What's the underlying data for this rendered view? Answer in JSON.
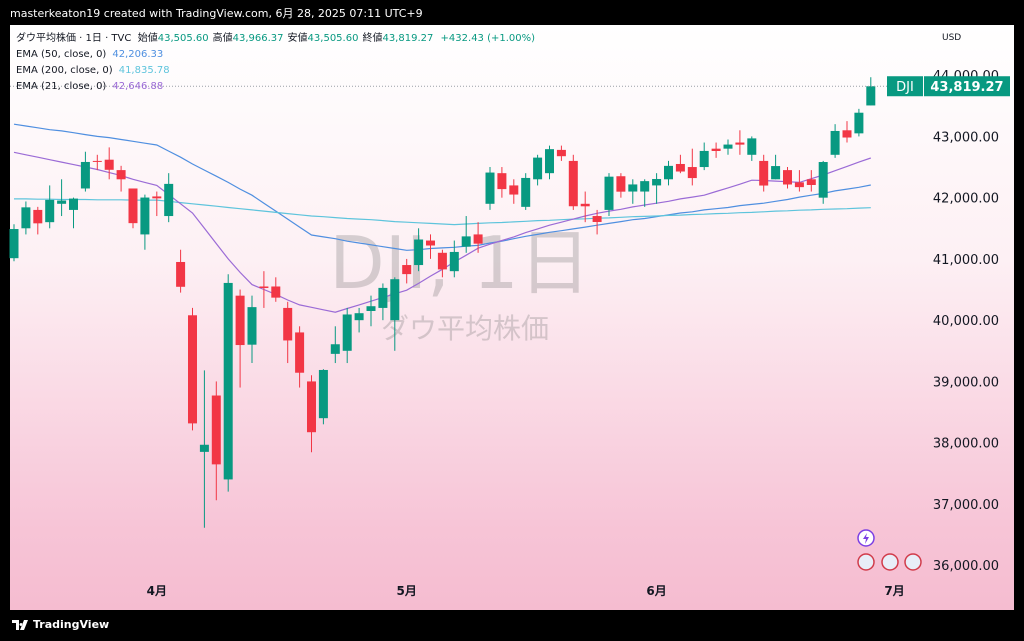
{
  "header": {
    "text": "masterkeaton19 created with TradingView.com, 6月 28, 2025 07:11 UTC+9"
  },
  "footer": {
    "brand": "TradingView"
  },
  "chart_data": {
    "type": "candlestick",
    "symbol_title": "ダウ平均株価 · 1日 · TVC",
    "ohlc_legend": [
      {
        "label": "始値",
        "value": "43,505.60"
      },
      {
        "label": "高値",
        "value": "43,966.37"
      },
      {
        "label": "安値",
        "value": "43,505.60"
      },
      {
        "label": "終値",
        "value": "43,819.27"
      }
    ],
    "change": "+432.43 (+1.00%)",
    "currency": "USD",
    "watermark": "DJI, 1日",
    "watermark_subtitle": "ダウ平均株価",
    "price_tag": {
      "symbol": "DJI",
      "label": "43,819.27"
    },
    "categories": [
      null,
      null,
      null,
      null,
      null,
      null,
      null,
      null,
      null,
      null,
      null,
      null,
      "4月",
      null,
      null,
      null,
      null,
      null,
      null,
      null,
      null,
      null,
      null,
      null,
      null,
      null,
      null,
      null,
      null,
      null,
      null,
      null,
      null,
      "5月",
      null,
      null,
      null,
      null,
      null,
      null,
      null,
      null,
      null,
      null,
      null,
      null,
      null,
      null,
      null,
      null,
      null,
      null,
      null,
      null,
      "6月",
      null,
      null,
      null,
      null,
      null,
      null,
      null,
      null,
      null,
      null,
      null,
      null,
      null,
      null,
      null,
      null,
      null,
      null,
      null,
      "7月"
    ],
    "open": [
      41012,
      41500,
      41800,
      41600,
      41900,
      41800,
      42150,
      42600,
      42620,
      42450,
      42150,
      41400,
      42020,
      41700,
      40950,
      40080,
      37850,
      38770,
      37400,
      40400,
      39600,
      40550,
      40550,
      40200,
      39800,
      39000,
      38400,
      39450,
      39500,
      40000,
      40150,
      40200,
      40000,
      40900,
      40900,
      41300,
      41100,
      40800,
      41200,
      41400,
      41900,
      42400,
      42200,
      41850,
      42300,
      42400,
      42780,
      42600,
      41900,
      41700,
      41800,
      42350,
      42100,
      42100,
      42200,
      42300,
      42550,
      42500,
      42500,
      42800,
      42800,
      42900,
      42700,
      42600,
      42300,
      42450,
      42250,
      42300,
      42000,
      42700,
      43100,
      43050,
      43505.6,
      null,
      null
    ],
    "high": [
      41566,
      41938,
      41850,
      42200,
      42300,
      42000,
      42750,
      42700,
      42821,
      42520,
      42150,
      42050,
      42100,
      42400,
      41150,
      40200,
      39180,
      39000,
      40750,
      40500,
      40400,
      40800,
      40700,
      40300,
      39900,
      39100,
      39200,
      39900,
      40200,
      40200,
      40400,
      40600,
      40700,
      41000,
      41500,
      41400,
      41150,
      41300,
      41700,
      41600,
      42500,
      42500,
      42300,
      42400,
      42700,
      42850,
      42850,
      42700,
      42100,
      41800,
      42400,
      42400,
      42300,
      42300,
      42400,
      42600,
      42700,
      42800,
      42900,
      42900,
      42950,
      43100,
      43000,
      42700,
      42700,
      42500,
      42450,
      42450,
      42600,
      43200,
      43250,
      43450,
      43966.37,
      null,
      null
    ],
    "low": [
      40961,
      41400,
      41400,
      41500,
      41700,
      41500,
      42100,
      42450,
      42300,
      42100,
      41500,
      41150,
      41700,
      41600,
      40450,
      38200,
      36612,
      37060,
      37200,
      38900,
      39300,
      40200,
      40300,
      39300,
      38900,
      37843,
      38300,
      39300,
      39300,
      39800,
      39900,
      40000,
      39500,
      40600,
      40800,
      41000,
      40700,
      40700,
      41100,
      41100,
      41800,
      42000,
      41900,
      41800,
      42200,
      42300,
      42600,
      41800,
      41600,
      41400,
      41700,
      42000,
      41900,
      41850,
      41900,
      42200,
      42400,
      42200,
      42450,
      42650,
      42700,
      42700,
      42600,
      42100,
      42300,
      42150,
      42100,
      42100,
      41900,
      42650,
      42900,
      43000,
      43505.6,
      null,
      null
    ],
    "close": [
      41488,
      41842,
      41581,
      41964,
      41953,
      41985,
      42583,
      42587,
      42455,
      42300,
      41584,
      42002,
      41989,
      42225,
      40545,
      38315,
      37966,
      37646,
      40608,
      39594,
      40213,
      40525,
      40368,
      39669,
      39142,
      38171,
      39187,
      39607,
      40093,
      40114,
      40228,
      40527,
      40669,
      40752,
      41317,
      41219,
      40829,
      41114,
      41368,
      41249,
      42410,
      42140,
      42051,
      42322,
      42654,
      42792,
      42677,
      41860,
      41859,
      41603,
      42343,
      42098,
      42216,
      42270,
      42305,
      42519,
      42427,
      42320,
      42763,
      42762,
      42867,
      42866,
      42968,
      42198,
      42516,
      42215,
      42172,
      42207,
      42582,
      43089,
      42982,
      43387,
      43819.27,
      null,
      null
    ],
    "up_color": "#089981",
    "down_color": "#f23645",
    "series": [
      {
        "name": "EMA (50, close, 0)",
        "legend_value": "42,206.33",
        "color": "#4f8fe0",
        "values": [
          43200,
          43170,
          43140,
          43110,
          43090,
          43060,
          43030,
          43000,
          42980,
          42950,
          42920,
          42890,
          42860,
          42760,
          42660,
          42550,
          42450,
          42350,
          42250,
          42140,
          42040,
          41910,
          41780,
          41650,
          41520,
          41390,
          41360,
          41330,
          41290,
          41260,
          41230,
          41200,
          41170,
          41140,
          41150,
          41170,
          41180,
          41190,
          41210,
          41220,
          41260,
          41290,
          41330,
          41370,
          41400,
          41435,
          41460,
          41490,
          41520,
          41550,
          41580,
          41610,
          41640,
          41660,
          41690,
          41720,
          41750,
          41770,
          41800,
          41820,
          41840,
          41870,
          41890,
          41910,
          41940,
          41970,
          42010,
          42040,
          42070,
          42110,
          42140,
          42170,
          42206.33,
          null,
          null
        ]
      },
      {
        "name": "EMA (200, close, 0)",
        "legend_value": "41,835.78",
        "color": "#5ec4dc",
        "values": [
          41980,
          41980,
          41975,
          41975,
          41970,
          41970,
          41970,
          41965,
          41965,
          41965,
          41960,
          41960,
          41960,
          41940,
          41920,
          41900,
          41880,
          41860,
          41840,
          41820,
          41800,
          41780,
          41760,
          41740,
          41720,
          41700,
          41690,
          41675,
          41660,
          41650,
          41640,
          41625,
          41610,
          41600,
          41590,
          41580,
          41570,
          41560,
          41570,
          41580,
          41590,
          41595,
          41605,
          41615,
          41625,
          41630,
          41640,
          41650,
          41655,
          41665,
          41670,
          41680,
          41690,
          41695,
          41700,
          41710,
          41715,
          41725,
          41730,
          41740,
          41745,
          41755,
          41760,
          41770,
          41780,
          41785,
          41795,
          41800,
          41810,
          41815,
          41820,
          41830,
          41835.78,
          null,
          null
        ]
      },
      {
        "name": "EMA (21, close, 0)",
        "legend_value": "42,646.88",
        "color": "#9b6bd6",
        "values": [
          42740,
          42700,
          42660,
          42620,
          42580,
          42540,
          42500,
          42460,
          42410,
          42360,
          42300,
          42250,
          42200,
          42050,
          41900,
          41750,
          41500,
          41250,
          41000,
          40780,
          40580,
          40500,
          40420,
          40330,
          40250,
          40210,
          40170,
          40130,
          40190,
          40250,
          40310,
          40370,
          40430,
          40490,
          40600,
          40720,
          40830,
          40950,
          41060,
          41175,
          41240,
          41300,
          41360,
          41430,
          41490,
          41550,
          41600,
          41650,
          41700,
          41745,
          41780,
          41810,
          41850,
          41880,
          41910,
          41940,
          41980,
          42010,
          42040,
          42100,
          42160,
          42220,
          42285,
          42280,
          42270,
          42260,
          42250,
          42310,
          42370,
          42440,
          42510,
          42580,
          42646.88,
          null,
          null
        ]
      }
    ],
    "ylim": [
      35350,
      44770
    ],
    "yticks": [
      {
        "value": 36000,
        "label": "36,000.00"
      },
      {
        "value": 37000,
        "label": "37,000.00"
      },
      {
        "value": 38000,
        "label": "38,000.00"
      },
      {
        "value": 39000,
        "label": "39,000.00"
      },
      {
        "value": 40000,
        "label": "40,000.00"
      },
      {
        "value": 41000,
        "label": "41,000.00"
      },
      {
        "value": 42000,
        "label": "42,000.00"
      },
      {
        "value": 43000,
        "label": "43,000.00"
      },
      {
        "value": 44000,
        "label": "44,000.00"
      }
    ]
  }
}
